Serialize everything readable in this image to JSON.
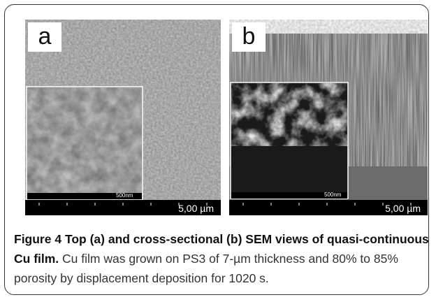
{
  "figure": {
    "panels": [
      {
        "label": "a",
        "scale_bar": "5,00 µm",
        "inset_scale_bar": "500nm"
      },
      {
        "label": "b",
        "scale_bar": "5,00 µm",
        "inset_scale_bar": "500nm"
      }
    ],
    "caption": {
      "label": "Figure 4",
      "title": "Top (a) and cross-sectional (b) SEM views of quasi-continuous Cu film.",
      "text": "Cu film was grown on PS3 of 7-µm thickness and 80% to 85% porosity by displacement deposition for 1020 s."
    }
  }
}
